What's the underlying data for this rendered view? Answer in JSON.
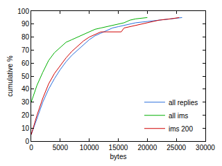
{
  "chart_data": {
    "type": "line",
    "x_label": "bytes",
    "y_label": "cumulative %",
    "xlim": [
      0,
      30000
    ],
    "xticks": [
      0,
      5000,
      10000,
      15000,
      20000,
      25000,
      30000
    ],
    "ylim": [
      0,
      100
    ],
    "yticks": [
      0,
      10,
      20,
      30,
      40,
      50,
      60,
      70,
      80,
      90,
      100
    ],
    "grid": false,
    "legend": "bottom right",
    "series": [
      {
        "name": "all replies",
        "color": "#2a6fdb",
        "x": [
          0,
          1000,
          2000,
          3000,
          4000,
          5000,
          6000,
          7000,
          8000,
          9000,
          10000,
          11000,
          12000,
          13000,
          14000,
          15000,
          16000,
          18000,
          20000,
          22000,
          24000,
          26000
        ],
        "values": [
          5,
          18,
          30,
          40,
          48,
          55,
          61,
          66,
          70,
          74,
          78,
          81,
          83,
          85,
          87,
          88,
          89,
          91,
          92,
          93,
          94,
          95
        ]
      },
      {
        "name": "all ims",
        "color": "#00b000",
        "x": [
          0,
          500,
          1000,
          2000,
          3000,
          4000,
          5000,
          6000,
          7000,
          8000,
          9000,
          10000,
          11000,
          12000,
          13000,
          14000,
          15000,
          16000,
          17000,
          18000,
          20000
        ],
        "values": [
          30,
          37,
          43,
          53,
          62,
          68,
          72,
          76,
          78,
          80,
          82,
          84,
          86,
          87,
          88,
          89,
          90,
          91,
          93,
          94,
          95
        ]
      },
      {
        "name": "ims 200",
        "color": "#d00000",
        "x": [
          0,
          1000,
          2000,
          3000,
          4000,
          5000,
          6000,
          7000,
          8000,
          9000,
          10000,
          11000,
          12000,
          13000,
          15500,
          16000,
          18000,
          20000,
          22000,
          24000,
          25500
        ],
        "values": [
          5,
          20,
          33,
          44,
          52,
          58,
          64,
          69,
          73,
          77,
          80,
          82,
          84,
          84,
          84,
          87,
          89,
          91,
          93,
          94,
          95
        ]
      }
    ]
  }
}
